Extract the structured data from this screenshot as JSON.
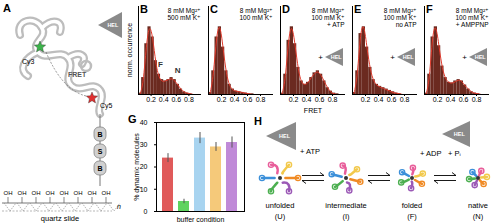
{
  "chart_data": [
    {
      "type": "histogram",
      "title": "B",
      "bins": [
        0,
        0.05,
        0.1,
        0.15,
        0.2,
        0.25,
        0.3,
        0.35,
        0.4,
        0.45,
        0.5,
        0.55,
        0.6,
        0.65,
        0.7,
        0.75,
        0.8,
        0.85,
        0.9,
        0.95,
        1
      ],
      "counts": [
        0.02,
        0.25,
        0.75,
        1.0,
        0.85,
        0.5,
        0.3,
        0.22,
        0.2,
        0.22,
        0.25,
        0.22,
        0.15,
        0.08,
        0.04,
        0.02,
        0.01,
        0,
        0,
        0
      ],
      "fit": {
        "color": "#e03a2c",
        "values": [
          0.01,
          0.22,
          0.7,
          0.97,
          0.82,
          0.48,
          0.27,
          0.2,
          0.2,
          0.22,
          0.23,
          0.2,
          0.14,
          0.08,
          0.04,
          0.02,
          0.01,
          0,
          0,
          0
        ]
      },
      "color": "#6b2a20",
      "xlim": [
        0,
        1
      ],
      "xticks": [
        0.2,
        0.4,
        0.6,
        0.8
      ],
      "ylim": [
        0,
        1.3
      ],
      "tick_labels": "x",
      "ylabel": "norm. occurrence",
      "annotations": [
        "8 mM Mg²⁺",
        "500 mM K⁺"
      ],
      "peak_labels": [
        {
          "text": "F",
          "x": 0.35,
          "y": 0.45
        },
        {
          "text": "N",
          "x": 0.62,
          "y": 0.35
        }
      ]
    },
    {
      "type": "histogram",
      "title": "C",
      "bins": [
        0,
        0.05,
        0.1,
        0.15,
        0.2,
        0.25,
        0.3,
        0.35,
        0.4,
        0.45,
        0.5,
        0.55,
        0.6,
        0.65,
        0.7,
        0.75,
        0.8,
        0.85,
        0.9,
        0.95,
        1
      ],
      "counts": [
        0.03,
        0.35,
        0.85,
        1.0,
        0.7,
        0.35,
        0.15,
        0.08,
        0.05,
        0.04,
        0.03,
        0.02,
        0.01,
        0.01,
        0,
        0,
        0,
        0,
        0,
        0
      ],
      "fit": {
        "color": "#e03a2c",
        "values": [
          0.02,
          0.32,
          0.82,
          0.98,
          0.68,
          0.33,
          0.14,
          0.07,
          0.05,
          0.04,
          0.03,
          0.02,
          0.01,
          0,
          0,
          0,
          0,
          0,
          0,
          0
        ]
      },
      "color": "#6b2a20",
      "xlim": [
        0,
        1
      ],
      "xticks": [
        0.2,
        0.4,
        0.6,
        0.8
      ],
      "ylim": [
        0,
        1.3
      ],
      "tick_labels": "x",
      "annotations": [
        "8 mM Mg²⁺",
        "100 mM K⁺"
      ]
    },
    {
      "type": "histogram",
      "title": "D",
      "bins": [
        0,
        0.05,
        0.1,
        0.15,
        0.2,
        0.25,
        0.3,
        0.35,
        0.4,
        0.45,
        0.5,
        0.55,
        0.6,
        0.65,
        0.7,
        0.75,
        0.8,
        0.85,
        0.9,
        0.95,
        1
      ],
      "counts": [
        0.02,
        0.3,
        0.8,
        1.0,
        0.75,
        0.4,
        0.2,
        0.15,
        0.18,
        0.25,
        0.32,
        0.35,
        0.3,
        0.2,
        0.1,
        0.05,
        0.02,
        0.01,
        0,
        0
      ],
      "fit": {
        "color": "#e03a2c",
        "values": [
          0.01,
          0.28,
          0.78,
          0.97,
          0.72,
          0.38,
          0.19,
          0.15,
          0.18,
          0.25,
          0.31,
          0.33,
          0.28,
          0.19,
          0.1,
          0.04,
          0.01,
          0,
          0,
          0
        ]
      },
      "color": "#6b2a20",
      "xlim": [
        0,
        1
      ],
      "xticks": [
        0.2,
        0.4,
        0.6,
        0.8
      ],
      "ylim": [
        0,
        1.3
      ],
      "tick_labels": "x",
      "xlabel": "FRET",
      "annotations": [
        "8 mM Mg²⁺",
        "100 mM K⁺",
        "+ ATP"
      ],
      "helicase": {
        "prefix": "+",
        "label": "HEL"
      }
    },
    {
      "type": "histogram",
      "title": "E",
      "bins": [
        0,
        0.05,
        0.1,
        0.15,
        0.2,
        0.25,
        0.3,
        0.35,
        0.4,
        0.45,
        0.5,
        0.55,
        0.6,
        0.65,
        0.7,
        0.75,
        0.8,
        0.85,
        0.9,
        0.95,
        1
      ],
      "counts": [
        0.03,
        0.35,
        0.9,
        1.0,
        0.7,
        0.4,
        0.22,
        0.15,
        0.12,
        0.1,
        0.08,
        0.06,
        0.04,
        0.02,
        0.01,
        0,
        0,
        0,
        0,
        0
      ],
      "fit": {
        "color": "#e03a2c",
        "values": [
          0.02,
          0.33,
          0.86,
          0.98,
          0.68,
          0.38,
          0.21,
          0.14,
          0.11,
          0.09,
          0.07,
          0.05,
          0.03,
          0.02,
          0.01,
          0,
          0,
          0,
          0,
          0
        ]
      },
      "color": "#6b2a20",
      "xlim": [
        0,
        1
      ],
      "xticks": [
        0.2,
        0.4,
        0.6,
        0.8
      ],
      "ylim": [
        0,
        1.3
      ],
      "tick_labels": "x",
      "annotations": [
        "8 mM Mg²⁺",
        "100 mM K⁺",
        "no ATP"
      ],
      "helicase": {
        "prefix": "+",
        "label": "HEL"
      }
    },
    {
      "type": "histogram",
      "title": "F",
      "bins": [
        0,
        0.05,
        0.1,
        0.15,
        0.2,
        0.25,
        0.3,
        0.35,
        0.4,
        0.45,
        0.5,
        0.55,
        0.6,
        0.65,
        0.7,
        0.75,
        0.8,
        0.85,
        0.9,
        0.95,
        1
      ],
      "counts": [
        0.02,
        0.3,
        0.85,
        1.0,
        0.72,
        0.42,
        0.25,
        0.18,
        0.17,
        0.2,
        0.22,
        0.2,
        0.14,
        0.08,
        0.04,
        0.02,
        0.01,
        0,
        0,
        0
      ],
      "fit": {
        "color": "#e03a2c",
        "values": [
          0.01,
          0.28,
          0.82,
          0.97,
          0.7,
          0.4,
          0.24,
          0.18,
          0.17,
          0.19,
          0.21,
          0.19,
          0.13,
          0.08,
          0.04,
          0.02,
          0.01,
          0,
          0,
          0
        ]
      },
      "color": "#6b2a20",
      "xlim": [
        0,
        1
      ],
      "xticks": [
        0.2,
        0.4,
        0.6,
        0.8
      ],
      "ylim": [
        0,
        1.3
      ],
      "tick_labels": "x",
      "annotations": [
        "8 mM Mg²⁺",
        "100 mM K⁺",
        "+ AMPPNP"
      ],
      "helicase": {
        "prefix": "+",
        "label": "HEL"
      }
    },
    {
      "type": "bar",
      "title": "G",
      "categories": [
        null,
        null,
        null,
        null,
        null
      ],
      "values": [
        24,
        4.5,
        33,
        29,
        31
      ],
      "errors": [
        2,
        1,
        2.5,
        2,
        2.5
      ],
      "colors": [
        "#e05a5a",
        "#5fd35f",
        "#a8d4f0",
        "#f5c97a",
        "#c08ad8"
      ],
      "ylim": [
        0,
        40
      ],
      "yticks": [
        0,
        10,
        20,
        30,
        40
      ],
      "ylabel": "% dynamic molecules",
      "xlabel": "buffer condition"
    }
  ],
  "panel_A": {
    "label": "A",
    "helicase": "HEL",
    "donor": "Cy3",
    "transfer": "FRET",
    "acceptor": "Cy5",
    "linker": [
      "B",
      "S",
      "B"
    ],
    "surface_groups": [
      "OH",
      "OH",
      "OH",
      "OH",
      "OH",
      "OH",
      "OH",
      "OH"
    ],
    "repeat": "n",
    "surface": "quartz slide"
  },
  "panel_H": {
    "label": "H",
    "helicase": "HEL",
    "states": [
      {
        "name": "unfolded",
        "symbol": "(U)"
      },
      {
        "name": "intermediate",
        "symbol": "(I)"
      },
      {
        "name": "folded",
        "symbol": "(F)"
      },
      {
        "name": "native",
        "symbol": "(N)"
      }
    ],
    "reagent": "+ ATP",
    "products": [
      "+ ADP",
      "+ Pᵢ"
    ]
  }
}
